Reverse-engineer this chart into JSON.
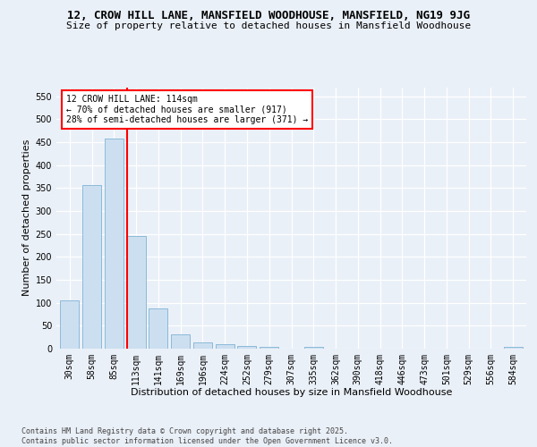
{
  "title": "12, CROW HILL LANE, MANSFIELD WOODHOUSE, MANSFIELD, NG19 9JG",
  "subtitle": "Size of property relative to detached houses in Mansfield Woodhouse",
  "xlabel": "Distribution of detached houses by size in Mansfield Woodhouse",
  "ylabel": "Number of detached properties",
  "categories": [
    "30sqm",
    "58sqm",
    "85sqm",
    "113sqm",
    "141sqm",
    "169sqm",
    "196sqm",
    "224sqm",
    "252sqm",
    "279sqm",
    "307sqm",
    "335sqm",
    "362sqm",
    "390sqm",
    "418sqm",
    "446sqm",
    "473sqm",
    "501sqm",
    "529sqm",
    "556sqm",
    "584sqm"
  ],
  "values": [
    105,
    357,
    457,
    246,
    88,
    32,
    13,
    9,
    6,
    4,
    0,
    3,
    0,
    0,
    0,
    0,
    0,
    0,
    0,
    0,
    4
  ],
  "bar_color": "#ccdff0",
  "bar_edge_color": "#7fb3d3",
  "vline_color": "red",
  "annotation_text": "12 CROW HILL LANE: 114sqm\n← 70% of detached houses are smaller (917)\n28% of semi-detached houses are larger (371) →",
  "annotation_box_color": "white",
  "annotation_box_edge_color": "red",
  "ylim": [
    0,
    570
  ],
  "yticks": [
    0,
    50,
    100,
    150,
    200,
    250,
    300,
    350,
    400,
    450,
    500,
    550
  ],
  "background_color": "#eaf0f8",
  "grid_color": "#ffffff",
  "footer_text": "Contains HM Land Registry data © Crown copyright and database right 2025.\nContains public sector information licensed under the Open Government Licence v3.0.",
  "title_fontsize": 9,
  "subtitle_fontsize": 8,
  "axis_label_fontsize": 8,
  "tick_fontsize": 7,
  "annotation_fontsize": 7,
  "footer_fontsize": 6
}
